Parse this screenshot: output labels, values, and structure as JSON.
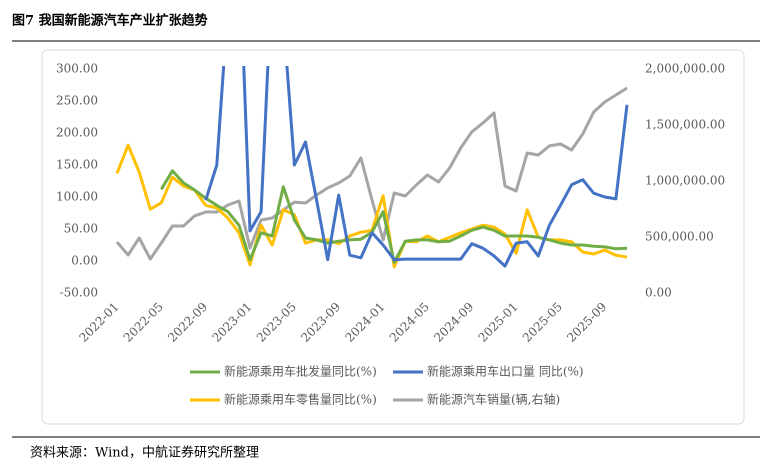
{
  "title": "图7 我国新能源汽车产业扩张趋势",
  "source": "资料来源：Wind，中航证券研究所整理",
  "chart_data": {
    "type": "line",
    "categories": [
      "2022-01",
      null,
      null,
      null,
      "2022-05",
      null,
      null,
      null,
      "2022-09",
      null,
      null,
      null,
      "2023-01",
      null,
      null,
      null,
      "2023-05",
      null,
      null,
      null,
      "2023-09",
      null,
      null,
      null,
      "2024-01",
      null,
      null,
      null,
      "2024-05",
      null,
      null,
      null,
      "2024-09",
      null,
      null,
      null,
      "2025-01",
      null,
      null,
      null,
      "2025-05",
      null,
      null,
      null,
      "2025-09",
      null,
      null
    ],
    "ylim": [
      -50,
      300
    ],
    "yticks": [
      {
        "value": -50,
        "label": "-50.00"
      },
      {
        "value": 0,
        "label": "0.00"
      },
      {
        "value": 50,
        "label": "50.00"
      },
      {
        "value": 100,
        "label": "100.00"
      },
      {
        "value": 150,
        "label": "150.00"
      },
      {
        "value": 200,
        "label": "200.00"
      },
      {
        "value": 250,
        "label": "250.00"
      },
      {
        "value": 300,
        "label": "300.00"
      }
    ],
    "y2lim": [
      0,
      2000000
    ],
    "y2ticks": [
      {
        "value": 0,
        "label": "0.00"
      },
      {
        "value": 500000,
        "label": "500,000.00"
      },
      {
        "value": 1000000,
        "label": "1,000,000.00"
      },
      {
        "value": 1500000,
        "label": "1,500,000.00"
      },
      {
        "value": 2000000,
        "label": "2,000,000.00"
      }
    ],
    "grid": false,
    "series": [
      {
        "name": "新能源乘用车批发量同比(%)",
        "color": "#70ad47",
        "values": [
          null,
          null,
          null,
          null,
          112,
          141,
          122,
          111,
          98,
          87,
          77,
          56,
          2,
          44,
          39,
          116,
          64,
          36,
          33,
          28,
          31,
          33,
          34,
          45,
          77,
          -2,
          31,
          33,
          33,
          30,
          31,
          39,
          48,
          53,
          48,
          39,
          39,
          39,
          37,
          33,
          28,
          25,
          25,
          23,
          22,
          19,
          20
        ]
      },
      {
        "name": "新能源乘用车出口量 同比(%)",
        "color": "#4472c4",
        "values": [
          null,
          null,
          null,
          null,
          null,
          null,
          null,
          null,
          95,
          150,
          400,
          500,
          47,
          77,
          450,
          380,
          150,
          186,
          95,
          2,
          103,
          9,
          5,
          44,
          25,
          2,
          3,
          3,
          3,
          3,
          3,
          3,
          27,
          20,
          8,
          -8,
          28,
          30,
          8,
          56,
          87,
          119,
          127,
          106,
          100,
          97,
          244
        ]
      },
      {
        "name": "新能源乘用车零售量同比(%)",
        "color": "#ffc000",
        "values": [
          137,
          181,
          139,
          81,
          91,
          131,
          117,
          111,
          87,
          83,
          67,
          44,
          -6,
          56,
          25,
          80,
          72,
          28,
          33,
          33,
          27,
          39,
          45,
          48,
          102,
          -9,
          31,
          30,
          39,
          30,
          37,
          44,
          50,
          56,
          53,
          42,
          12,
          80,
          37,
          33,
          33,
          30,
          14,
          11,
          17,
          9,
          6
        ]
      },
      {
        "name": "新能源汽车销量(辆,右轴)",
        "color": "#a5a5a5",
        "axis": "y2",
        "values": [
          455000,
          339000,
          491000,
          304000,
          446000,
          598000,
          598000,
          688000,
          723000,
          723000,
          786000,
          821000,
          402000,
          652000,
          670000,
          741000,
          812000,
          804000,
          875000,
          938000,
          982000,
          1045000,
          1205000,
          830000,
          473000,
          893000,
          866000,
          964000,
          1054000,
          991000,
          1116000,
          1295000,
          1438000,
          1518000,
          1607000,
          955000,
          911000,
          1250000,
          1232000,
          1313000,
          1330000,
          1277000,
          1420000,
          1616000,
          1705000,
          1768000,
          1830000
        ]
      }
    ]
  }
}
